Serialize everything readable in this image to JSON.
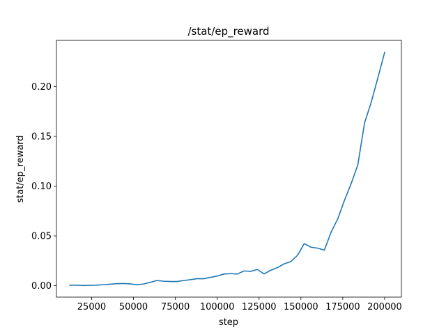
{
  "chart_data": {
    "type": "line",
    "title": "/stat/ep_reward",
    "xlabel": "step",
    "ylabel": "stat/ep_reward",
    "xlim": [
      4000,
      210000
    ],
    "ylim": [
      -0.0115,
      0.2465
    ],
    "x_ticks": [
      25000,
      50000,
      75000,
      100000,
      125000,
      150000,
      175000,
      200000
    ],
    "x_tick_labels": [
      "25000",
      "50000",
      "75000",
      "100000",
      "125000",
      "150000",
      "175000",
      "200000"
    ],
    "y_ticks": [
      0.0,
      0.05,
      0.1,
      0.15,
      0.2
    ],
    "y_tick_labels": [
      "0.00",
      "0.05",
      "0.10",
      "0.15",
      "0.20"
    ],
    "grid": false,
    "series": [
      {
        "color": "#1f77b4",
        "x": [
          12000,
          16000,
          20000,
          24000,
          28000,
          32000,
          36000,
          40000,
          44000,
          48000,
          52000,
          56000,
          60000,
          64000,
          68000,
          72000,
          76000,
          80000,
          84000,
          88000,
          92000,
          96000,
          100000,
          104000,
          108000,
          112000,
          116000,
          120000,
          124000,
          128000,
          132000,
          136000,
          140000,
          144000,
          148000,
          152000,
          156000,
          160000,
          164000,
          168000,
          172000,
          176000,
          180000,
          184000,
          188000,
          192000,
          196000,
          200000
        ],
        "y": [
          0.0005,
          0.0005,
          0.0002,
          0.0003,
          0.0005,
          0.001,
          0.0015,
          0.002,
          0.0022,
          0.0018,
          0.0009,
          0.0017,
          0.0033,
          0.0052,
          0.0045,
          0.0042,
          0.0042,
          0.0052,
          0.006,
          0.0071,
          0.007,
          0.0084,
          0.0097,
          0.0117,
          0.0121,
          0.0117,
          0.0148,
          0.0144,
          0.0163,
          0.0118,
          0.0155,
          0.0182,
          0.0219,
          0.0243,
          0.0306,
          0.0423,
          0.0386,
          0.0377,
          0.0357,
          0.0537,
          0.0672,
          0.0858,
          0.1025,
          0.1216,
          0.1636,
          0.1844,
          0.2092,
          0.2344
        ]
      }
    ]
  }
}
